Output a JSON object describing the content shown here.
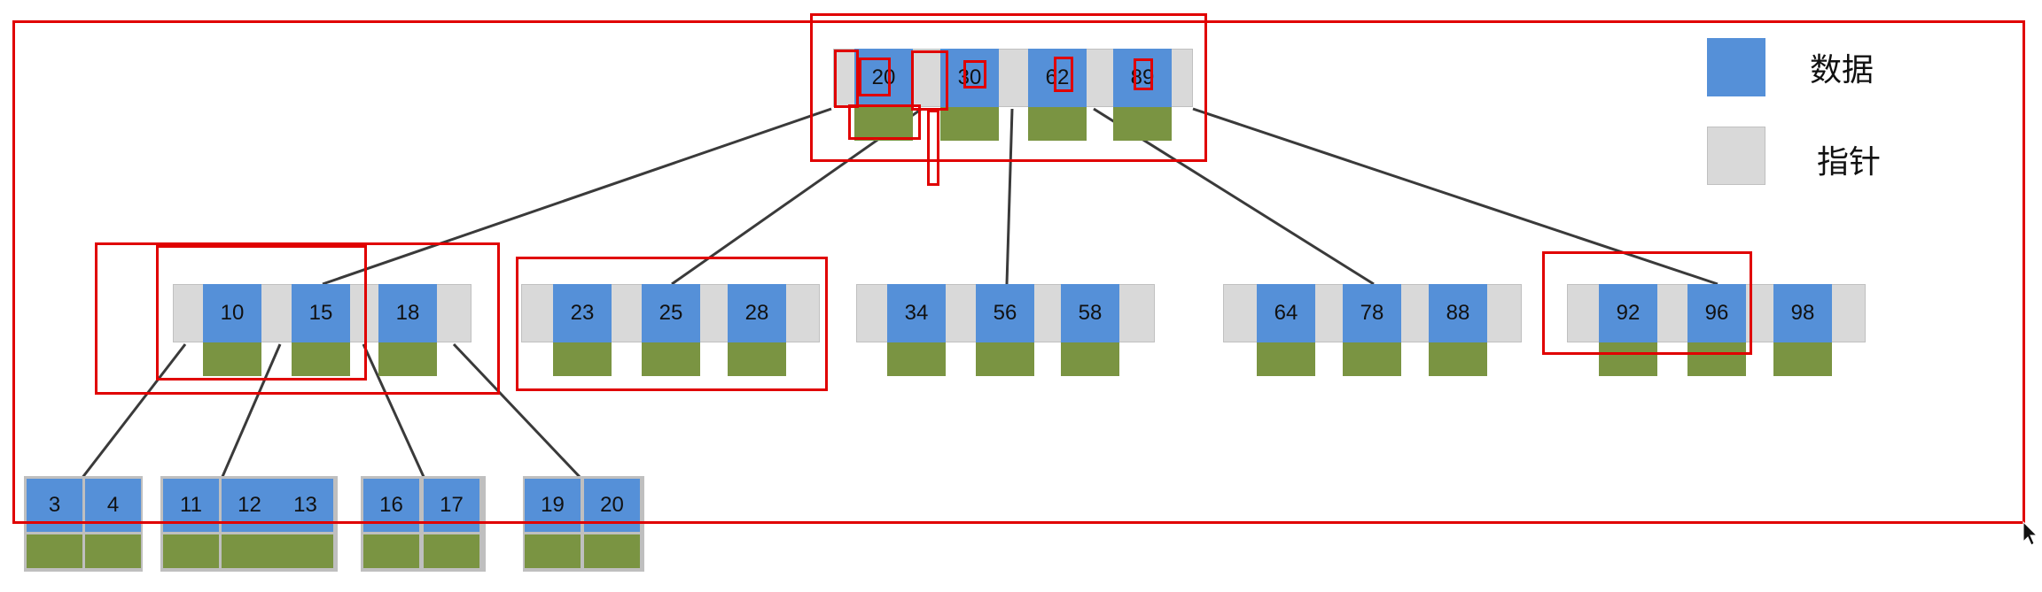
{
  "diagram": {
    "type": "b-tree",
    "root": [
      "20",
      "30",
      "62",
      "89"
    ],
    "internal_nodes": [
      [
        "10",
        "15",
        "18"
      ],
      [
        "23",
        "25",
        "28"
      ],
      [
        "34",
        "56",
        "58"
      ],
      [
        "64",
        "78",
        "88"
      ],
      [
        "92",
        "96",
        "98"
      ]
    ],
    "leaf_nodes": [
      [
        "3",
        "4"
      ],
      [
        "11",
        "12",
        "13"
      ],
      [
        "16",
        "17"
      ],
      [
        "19",
        "20"
      ]
    ]
  },
  "legend": {
    "data_label": "数据",
    "pointer_label": "指针",
    "data_color": "#5590d8",
    "pointer_color": "#d9d9d9"
  },
  "colors": {
    "data": "#5590d8",
    "pointer": "#d9d9d9",
    "record": "#7a9442",
    "highlight": "#e00000",
    "edge": "#3a3a3a"
  }
}
